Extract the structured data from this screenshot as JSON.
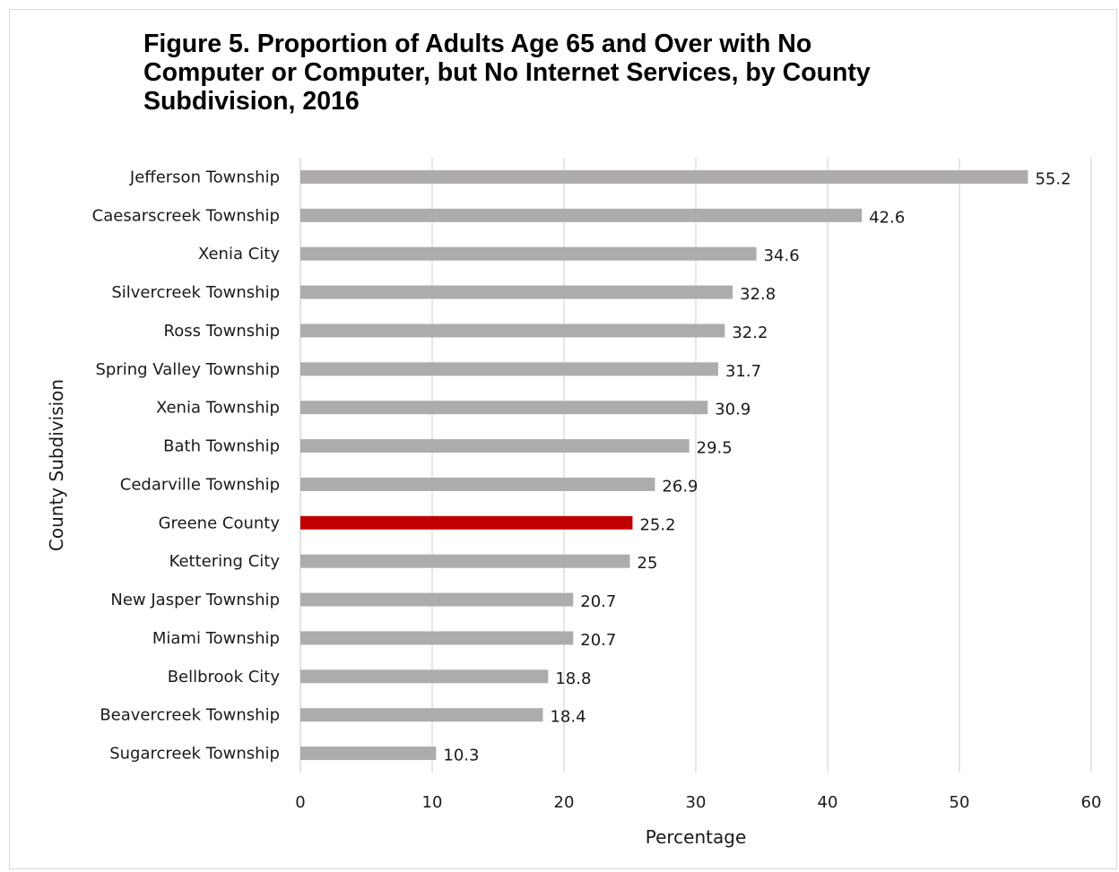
{
  "chart_data": {
    "type": "bar",
    "orientation": "horizontal",
    "title_lines": [
      "Figure 5. Proportion of Adults Age 65 and Over with No",
      "Computer or Computer, but No Internet Services, by County",
      "Subdivision, 2016"
    ],
    "xlabel": "Percentage",
    "ylabel": "County Subdivision",
    "xlim": [
      0,
      60
    ],
    "xticks": [
      0,
      10,
      20,
      30,
      40,
      50,
      60
    ],
    "grid": "vertical",
    "categories": [
      "Jefferson Township",
      "Caesarscreek Township",
      "Xenia City",
      "Silvercreek Township",
      "Ross Township",
      "Spring Valley Township",
      "Xenia Township",
      "Bath Township",
      "Cedarville Township",
      "Greene County",
      "Kettering City",
      "New Jasper Township",
      "Miami Township",
      "Bellbrook City",
      "Beavercreek Township",
      "Sugarcreek Township"
    ],
    "values": [
      55.2,
      42.6,
      34.6,
      32.8,
      32.2,
      31.7,
      30.9,
      29.5,
      26.9,
      25.2,
      25,
      20.7,
      20.7,
      18.8,
      18.4,
      10.3
    ],
    "highlight_category": "Greene County",
    "bar_color": "#aeabab",
    "highlight_color": "#c00000",
    "grid_color": "#d9d9d9"
  }
}
